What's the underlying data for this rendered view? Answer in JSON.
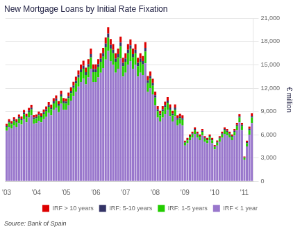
{
  "chart_data": {
    "type": "bar",
    "stacked": true,
    "title": "New Mortgage Loans by Initial Rate Fixation",
    "ylabel": "€ million",
    "annotations": [
      "Source: Bank of Spain"
    ],
    "grid": true,
    "legend": "bottom",
    "ylim": [
      0,
      21000
    ],
    "yticks": [
      0,
      {
        "value": 3000,
        "label": "3,000"
      },
      {
        "value": 6000,
        "label": "6,000"
      },
      {
        "value": 9000,
        "label": "9,000"
      },
      {
        "value": 12000,
        "label": "12,000"
      },
      {
        "value": 15000,
        "label": "15,000"
      },
      {
        "value": 18000,
        "label": "18,000"
      },
      {
        "value": 21000,
        "label": "21,000"
      }
    ],
    "categories": [
      "'03",
      null,
      null,
      null,
      null,
      null,
      null,
      null,
      null,
      null,
      null,
      null,
      "'04",
      null,
      null,
      null,
      null,
      null,
      null,
      null,
      null,
      null,
      null,
      null,
      "'05",
      null,
      null,
      null,
      null,
      null,
      null,
      null,
      null,
      null,
      null,
      null,
      "'06",
      null,
      null,
      null,
      null,
      null,
      null,
      null,
      null,
      null,
      null,
      null,
      "'07",
      null,
      null,
      null,
      null,
      null,
      null,
      null,
      null,
      null,
      null,
      null,
      "'08",
      null,
      null,
      null,
      null,
      null,
      null,
      null,
      null,
      null,
      null,
      null,
      "'09",
      null,
      null,
      null,
      null,
      null,
      null,
      null,
      null,
      null,
      null,
      null,
      "'10",
      null,
      null,
      null,
      null,
      null,
      null,
      null,
      null,
      null,
      null,
      null,
      "'11",
      null,
      null,
      null
    ],
    "series": [
      {
        "name": "IRF < 1 year",
        "color": "#9977cc",
        "values": [
          6500,
          7000,
          6800,
          7200,
          7000,
          7500,
          7300,
          8000,
          7600,
          8200,
          8500,
          7400,
          7500,
          7800,
          7600,
          8000,
          8300,
          8800,
          8500,
          9200,
          9500,
          8900,
          10000,
          9200,
          9200,
          9800,
          10400,
          11000,
          11500,
          12200,
          12800,
          13200,
          12500,
          13400,
          14500,
          12800,
          12800,
          13400,
          14000,
          14600,
          15700,
          16800,
          15500,
          15000,
          14000,
          14500,
          15800,
          13500,
          14000,
          15000,
          15500,
          14500,
          15000,
          13500,
          14000,
          13700,
          15200,
          11500,
          12000,
          11200,
          9800,
          8200,
          7700,
          8200,
          8700,
          9200,
          8400,
          7700,
          8400,
          7200,
          7400,
          7200,
          4600,
          4900,
          5300,
          5600,
          6100,
          5600,
          5300,
          5900,
          5100,
          4900,
          5300,
          4900,
          4100,
          4600,
          5100,
          5600,
          6100,
          5900,
          5600,
          5300,
          5900,
          6600,
          7600,
          6600,
          2800,
          4500,
          6000,
          7500
        ]
      },
      {
        "name": "IRF: 1-5 years",
        "color": "#22cc00",
        "values": [
          500,
          550,
          520,
          580,
          550,
          600,
          580,
          650,
          620,
          700,
          750,
          620,
          620,
          660,
          640,
          700,
          740,
          790,
          770,
          840,
          870,
          800,
          930,
          850,
          820,
          900,
          960,
          1020,
          1100,
          1160,
          1250,
          1300,
          1200,
          1300,
          1450,
          1270,
          1270,
          1300,
          1400,
          1450,
          1580,
          1700,
          1580,
          1500,
          1400,
          1450,
          1590,
          1350,
          1400,
          1500,
          1550,
          1450,
          1500,
          1350,
          1400,
          1370,
          1520,
          1150,
          1200,
          1120,
          980,
          820,
          770,
          820,
          870,
          920,
          840,
          770,
          840,
          720,
          740,
          720,
          350,
          380,
          410,
          440,
          480,
          440,
          410,
          460,
          400,
          380,
          410,
          380,
          320,
          360,
          400,
          440,
          480,
          460,
          440,
          410,
          460,
          520,
          600,
          520,
          220,
          400,
          580,
          700
        ]
      },
      {
        "name": "IRF: 5-10 years",
        "color": "#333366",
        "values": [
          150,
          170,
          160,
          180,
          170,
          190,
          180,
          200,
          190,
          210,
          230,
          190,
          190,
          200,
          195,
          215,
          225,
          240,
          235,
          255,
          265,
          245,
          280,
          260,
          250,
          275,
          290,
          310,
          335,
          355,
          380,
          395,
          365,
          395,
          440,
          385,
          385,
          395,
          425,
          440,
          480,
          515,
          480,
          455,
          425,
          440,
          485,
          410,
          425,
          455,
          470,
          440,
          455,
          410,
          425,
          415,
          460,
          350,
          365,
          340,
          300,
          250,
          235,
          250,
          265,
          280,
          255,
          235,
          255,
          220,
          225,
          220,
          107,
          115,
          125,
          135,
          146,
          135,
          125,
          140,
          122,
          115,
          125,
          115,
          97,
          110,
          122,
          135,
          146,
          140,
          134,
          125,
          140,
          158,
          182,
          158,
          67,
          122,
          177,
          213
        ]
      },
      {
        "name": "IRF > 10 years",
        "color": "#dd0000",
        "values": [
          250,
          280,
          265,
          295,
          280,
          305,
          295,
          325,
          310,
          340,
          365,
          305,
          305,
          320,
          315,
          345,
          360,
          385,
          375,
          410,
          425,
          390,
          450,
          415,
          400,
          440,
          465,
          495,
          535,
          565,
          610,
          635,
          585,
          635,
          705,
          615,
          615,
          640,
          680,
          705,
          770,
          825,
          770,
          730,
          680,
          705,
          775,
          655,
          680,
          730,
          755,
          705,
          730,
          655,
          680,
          665,
          740,
          560,
          585,
          545,
          480,
          400,
          375,
          400,
          425,
          450,
          410,
          375,
          410,
          355,
          360,
          355,
          172,
          184,
          200,
          216,
          234,
          216,
          200,
          224,
          195,
          184,
          200,
          184,
          156,
          176,
          195,
          216,
          234,
          224,
          215,
          200,
          224,
          253,
          292,
          253,
          107,
          195,
          284,
          340
        ]
      }
    ]
  }
}
